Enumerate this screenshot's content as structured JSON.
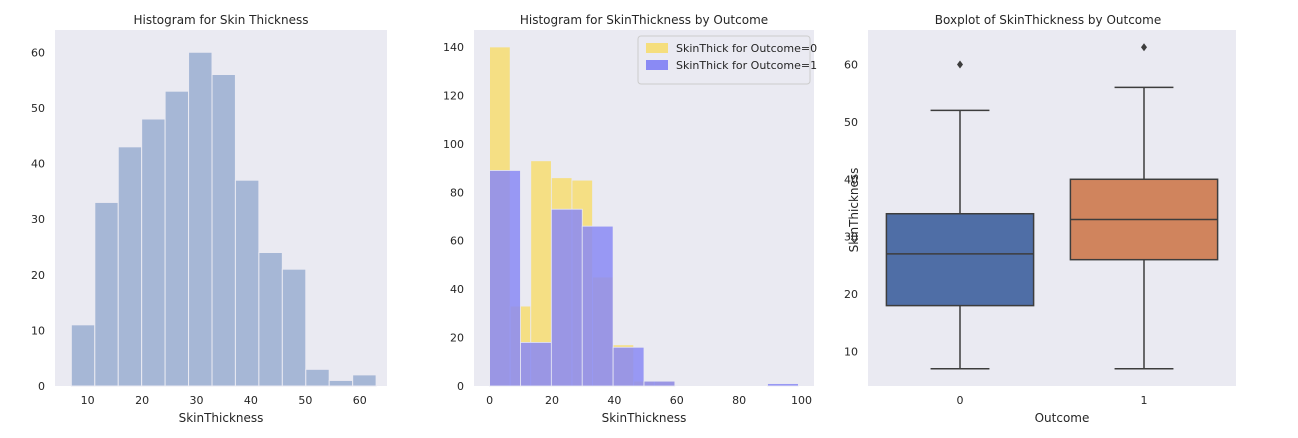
{
  "chart_data": [
    {
      "type": "bar",
      "title": "Histogram for Skin Thickness",
      "xlabel": "SkinThickness",
      "ylabel": "",
      "xlim": [
        4,
        65
      ],
      "ylim": [
        0,
        64
      ],
      "xticks": [
        10,
        20,
        30,
        40,
        50,
        60
      ],
      "yticks": [
        0,
        10,
        20,
        30,
        40,
        50,
        60
      ],
      "bin_edges": [
        7.0,
        11.31,
        15.62,
        19.92,
        24.23,
        28.54,
        32.85,
        37.15,
        41.46,
        45.77,
        50.08,
        54.38,
        58.69,
        63.0
      ],
      "values": [
        11,
        33,
        43,
        48,
        53,
        60,
        56,
        37,
        24,
        21,
        3,
        1,
        2
      ],
      "colors": {
        "bar": "#a6b7d6",
        "edge": "#eaeaf2"
      },
      "background": "#eaeaf2",
      "grid": false
    },
    {
      "type": "bar",
      "title": "Histogram for SkinThickness by Outcome",
      "xlabel": "SkinThickness",
      "ylabel": "",
      "xlim": [
        -5,
        104
      ],
      "ylim": [
        0,
        147
      ],
      "xticks": [
        0,
        20,
        40,
        60,
        80,
        100
      ],
      "yticks": [
        0,
        20,
        40,
        60,
        80,
        100,
        120,
        140
      ],
      "legend": "top-right",
      "series": [
        {
          "name": "SkinThick for Outcome=0",
          "color": "#f5de7d",
          "bin_edges": [
            0.0,
            6.6,
            13.2,
            19.8,
            26.4,
            33.0,
            39.6,
            46.2,
            52.8,
            59.4,
            66.0
          ],
          "values": [
            140,
            33,
            93,
            86,
            85,
            45,
            17,
            2,
            2,
            0
          ]
        },
        {
          "name": "SkinThick for Outcome=1",
          "color": "#8a8af4",
          "bin_edges": [
            0.0,
            9.9,
            19.8,
            29.7,
            39.6,
            49.5,
            59.4,
            69.3,
            79.2,
            89.1,
            99.0
          ],
          "values": [
            89,
            18,
            73,
            66,
            16,
            2,
            0,
            0,
            0,
            1
          ]
        }
      ],
      "overlap_color": "#9b8cc6",
      "background": "#eaeaf2",
      "grid": false
    },
    {
      "type": "box",
      "title": "Boxplot of SkinThickness by Outcome",
      "xlabel": "Outcome",
      "ylabel": "SkinThickness",
      "ylim": [
        4,
        66
      ],
      "yticks": [
        10,
        20,
        30,
        40,
        50,
        60
      ],
      "categories": [
        "0",
        "1"
      ],
      "boxes": [
        {
          "category": "0",
          "whisker_low": 7,
          "q1": 18,
          "median": 27,
          "q3": 34,
          "whisker_high": 52,
          "outliers": [
            60
          ],
          "color": "#4f6ea6"
        },
        {
          "category": "1",
          "whisker_low": 7,
          "q1": 26,
          "median": 33,
          "q3": 40,
          "whisker_high": 56,
          "outliers": [
            63
          ],
          "color": "#d0845d"
        }
      ],
      "background": "#eaeaf2",
      "grid": false
    }
  ]
}
